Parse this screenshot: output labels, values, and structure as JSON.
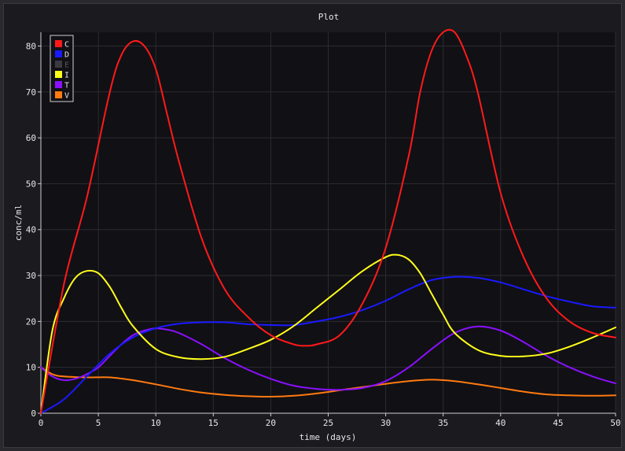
{
  "chart_data": {
    "type": "line",
    "title": "Plot",
    "xlabel": "time (days)",
    "ylabel": "conc/ml",
    "xlim": [
      0,
      50
    ],
    "ylim": [
      0,
      83
    ],
    "xticks": [
      0,
      5,
      10,
      15,
      20,
      25,
      30,
      35,
      40,
      45,
      50
    ],
    "yticks": [
      0,
      10,
      20,
      30,
      40,
      50,
      60,
      70,
      80
    ],
    "grid": true,
    "legend_position": "top-left",
    "colors": {
      "background": "#111015",
      "grid": "#2c2b31",
      "axis": "#cfcfcf"
    },
    "series": [
      {
        "name": "C",
        "color": "#ff1a1a",
        "visible": true,
        "x": [
          0,
          2,
          4,
          6,
          7,
          8,
          9,
          10,
          11,
          12,
          14,
          16,
          18,
          20,
          22,
          23,
          24,
          26,
          28,
          30,
          32,
          33,
          34,
          35,
          36,
          37,
          38,
          40,
          42,
          44,
          46,
          48,
          50
        ],
        "y": [
          0,
          28,
          47,
          70,
          78,
          81,
          80,
          75,
          65,
          55,
          38,
          27,
          21,
          17,
          15,
          14.7,
          15,
          17,
          24,
          36,
          56,
          70,
          79,
          83,
          83,
          78,
          70,
          48,
          34,
          25,
          20,
          17.5,
          16.5
        ]
      },
      {
        "name": "D",
        "color": "#1a1aff",
        "visible": true,
        "x": [
          0,
          2,
          4,
          6,
          8,
          10,
          12,
          14,
          16,
          18,
          20,
          22,
          24,
          26,
          28,
          30,
          32,
          34,
          36,
          38,
          40,
          42,
          44,
          46,
          48,
          50
        ],
        "y": [
          0,
          3,
          8,
          13,
          16.5,
          18.5,
          19.5,
          19.8,
          19.8,
          19.4,
          19.2,
          19.2,
          20,
          21,
          22.5,
          24.5,
          27,
          29,
          29.7,
          29.5,
          28.5,
          27,
          25.5,
          24.3,
          23.3,
          23
        ]
      },
      {
        "name": "E",
        "color": "#404046",
        "visible": false,
        "x": [],
        "y": []
      },
      {
        "name": "I",
        "color": "#ffff1a",
        "visible": true,
        "x": [
          0,
          1,
          2,
          3,
          4,
          5,
          6,
          7,
          8,
          10,
          12,
          14,
          16,
          18,
          20,
          22,
          24,
          26,
          28,
          30,
          31,
          32,
          33,
          34,
          35,
          36,
          38,
          40,
          42,
          44,
          46,
          48,
          50
        ],
        "y": [
          0,
          18,
          25,
          29.5,
          31,
          30.5,
          27.5,
          23,
          19,
          14,
          12.2,
          11.8,
          12.3,
          14,
          16,
          19,
          23,
          27,
          31,
          34,
          34.5,
          33.5,
          30.5,
          26,
          21.5,
          17.5,
          13.8,
          12.5,
          12.4,
          13,
          14.5,
          16.5,
          18.7
        ]
      },
      {
        "name": "T",
        "color": "#8a10ff",
        "visible": true,
        "x": [
          0,
          1,
          2,
          3,
          4,
          5,
          6,
          7,
          8,
          9,
          10,
          11,
          12,
          14,
          16,
          18,
          20,
          22,
          24,
          26,
          28,
          30,
          32,
          34,
          36,
          38,
          40,
          42,
          44,
          46,
          48,
          50
        ],
        "y": [
          10,
          8,
          7.2,
          7.5,
          8.5,
          10,
          12.5,
          15,
          17,
          18,
          18.5,
          18.2,
          17.5,
          15,
          12,
          9.5,
          7.5,
          6,
          5.3,
          5.1,
          5.5,
          7,
          10,
          14,
          17.5,
          18.9,
          18,
          15.5,
          12.5,
          10,
          8,
          6.5
        ]
      },
      {
        "name": "V",
        "color": "#ff7a10",
        "visible": true,
        "x": [
          0,
          1,
          2,
          4,
          6,
          8,
          10,
          12,
          14,
          16,
          18,
          20,
          22,
          24,
          26,
          28,
          30,
          32,
          34,
          36,
          38,
          40,
          42,
          44,
          46,
          48,
          50
        ],
        "y": [
          10,
          8.5,
          8,
          7.8,
          7.8,
          7.2,
          6.3,
          5.3,
          4.5,
          4,
          3.7,
          3.6,
          3.8,
          4.3,
          5,
          5.7,
          6.4,
          7,
          7.3,
          7,
          6.3,
          5.5,
          4.7,
          4.1,
          3.9,
          3.8,
          3.9
        ]
      }
    ]
  }
}
